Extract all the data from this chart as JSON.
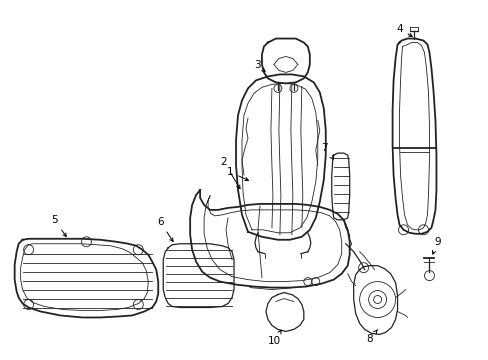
{
  "bg_color": "#ffffff",
  "line_color": "#222222",
  "fig_width": 4.89,
  "fig_height": 3.6,
  "dpi": 100
}
